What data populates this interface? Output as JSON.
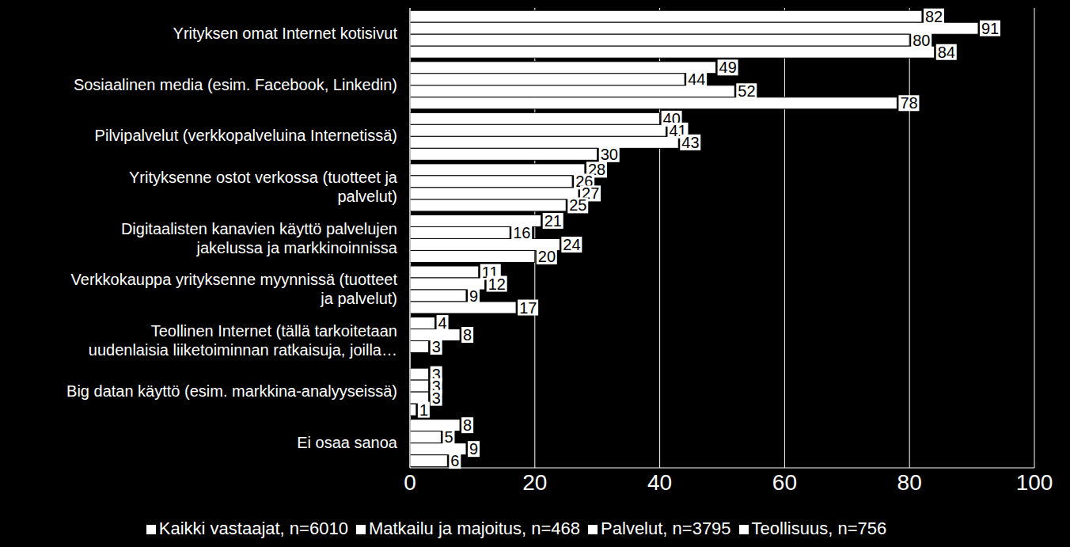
{
  "chart_data": {
    "type": "bar",
    "orientation": "horizontal",
    "categories": [
      "Yrityksen omat Internet kotisivut",
      "Sosiaalinen media (esim. Facebook, Linkedin)",
      "Pilvipalvelut  (verkkopalveluina Internetissä)",
      "Yrityksenne ostot verkossa (tuotteet ja palvelut)",
      "Digitaalisten kanavien käyttö palvelujen jakelussa ja markkinoinnissa",
      "Verkkokauppa yrityksenne myynnissä (tuotteet ja palvelut)",
      "Teollinen Internet (tällä tarkoitetaan uudenlaisia liiketoiminnan ratkaisuja, joilla…",
      "Big datan käyttö (esim. markkina-analyyseissä)",
      "Ei osaa sanoa"
    ],
    "series": [
      {
        "name": "Kaikki vastaajat, n=6010",
        "color": "#ffffff",
        "values": [
          82,
          49,
          40,
          28,
          21,
          11,
          4,
          3,
          8
        ]
      },
      {
        "name": "Teollisuus, n=756",
        "color": "#ffffff",
        "values": [
          91,
          44,
          41,
          26,
          16,
          12,
          8,
          3,
          5
        ]
      },
      {
        "name": "Palvelut, n=3795",
        "color": "#ffffff",
        "values": [
          80,
          52,
          43,
          27,
          24,
          9,
          3,
          3,
          9
        ]
      },
      {
        "name": "Matkailu ja majoitus, n=468",
        "color": "#ffffff",
        "values": [
          84,
          78,
          30,
          25,
          20,
          17,
          0,
          1,
          6
        ]
      }
    ],
    "xlim": [
      0,
      100
    ],
    "xticks": [
      0,
      20,
      40,
      60,
      80,
      100
    ],
    "grid": true,
    "data_labels": true,
    "legend": "bottom"
  }
}
